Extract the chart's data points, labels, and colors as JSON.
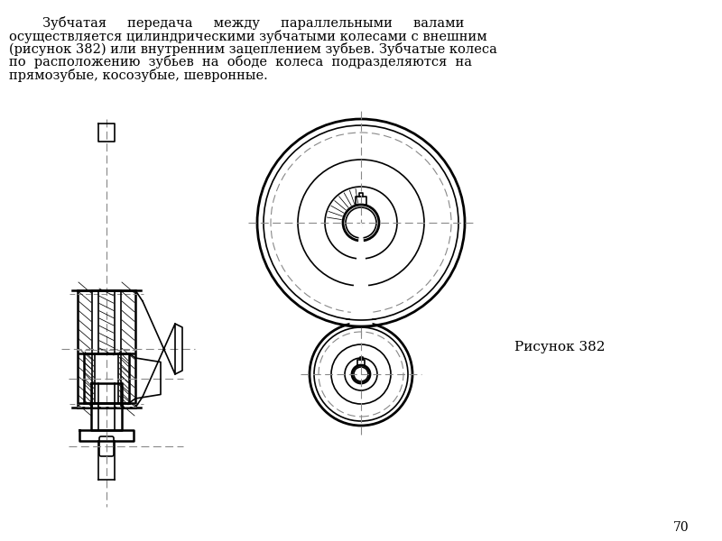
{
  "figure_label": "Рисунок 382",
  "page_number": "70",
  "bg_color": "#ffffff",
  "line_color": "#000000",
  "dash_color": "#888888",
  "text_line1": "        Зубчатая     передача     между     параллельными     валами",
  "text_line2": "осуществляется цилиндрическими зубчатыми колесами с внешним",
  "text_line3": "(рисунок 382) или внутренним зацеплением зубьев. Зубчатые колеса",
  "text_line4": "по  расположению  зубьев  на  ободе  колеса  подразделяются  на",
  "text_line5": "прямозубые, косозубые, шевронные."
}
